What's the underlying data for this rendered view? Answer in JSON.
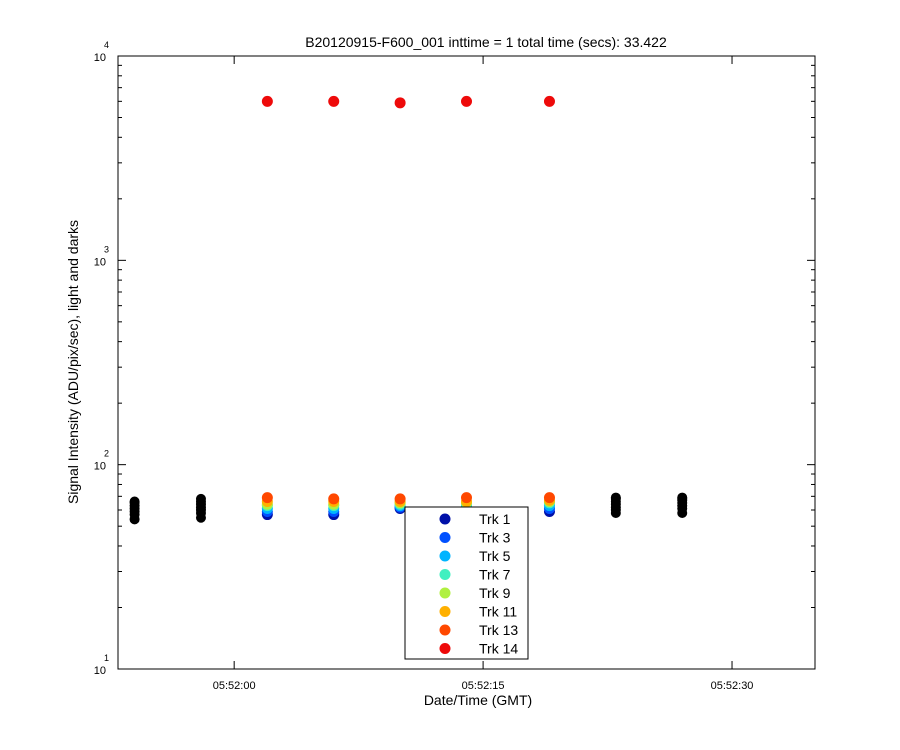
{
  "chart_data": {
    "type": "scatter",
    "title": "B20120915-F600_001 inttime = 1 total time (secs): 33.422",
    "xlabel": "Date/Time (GMT)",
    "ylabel": "Signal Intensity (ADU/pix/sec), light and darks",
    "yscale": "log",
    "ylim": [
      10,
      10000
    ],
    "xlim": [
      "05:51:53",
      "05:52:35"
    ],
    "x_ticks": [
      "05:52:00",
      "05:52:15",
      "05:52:30"
    ],
    "y_ticks": [
      {
        "value": 10,
        "base": "10",
        "exp": "1"
      },
      {
        "value": 100,
        "base": "10",
        "exp": "2"
      },
      {
        "value": 1000,
        "base": "10",
        "exp": "3"
      },
      {
        "value": 10000,
        "base": "10",
        "exp": "4"
      }
    ],
    "legend_position": "bottom-center",
    "series": [
      {
        "name": "Trk 1",
        "color": "#0010a8",
        "x": [
          "05:52:02",
          "05:52:06",
          "05:52:10",
          "05:52:14",
          "05:52:19"
        ],
        "values": [
          57,
          57,
          61,
          61,
          59
        ]
      },
      {
        "name": "Trk 3",
        "color": "#0050ff",
        "x": [
          "05:52:02",
          "05:52:06",
          "05:52:10",
          "05:52:14",
          "05:52:19"
        ],
        "values": [
          59,
          59,
          62,
          62,
          61
        ]
      },
      {
        "name": "Trk 5",
        "color": "#00b4ff",
        "x": [
          "05:52:02",
          "05:52:06",
          "05:52:10",
          "05:52:14",
          "05:52:19"
        ],
        "values": [
          61,
          61,
          63,
          63,
          63
        ]
      },
      {
        "name": "Trk 7",
        "color": "#40f0c0",
        "x": [
          "05:52:02",
          "05:52:06",
          "05:52:10",
          "05:52:14",
          "05:52:19"
        ],
        "values": [
          63,
          63,
          64,
          64,
          65
        ]
      },
      {
        "name": "Trk 9",
        "color": "#b0f040",
        "x": [
          "05:52:02",
          "05:52:06",
          "05:52:10",
          "05:52:14",
          "05:52:19"
        ],
        "values": [
          64,
          64,
          65,
          65,
          66
        ]
      },
      {
        "name": "Trk 11",
        "color": "#ffb000",
        "x": [
          "05:52:02",
          "05:52:06",
          "05:52:10",
          "05:52:14",
          "05:52:19"
        ],
        "values": [
          66,
          66,
          66,
          66,
          67
        ]
      },
      {
        "name": "Trk 13",
        "color": "#ff4800",
        "x": [
          "05:52:02",
          "05:52:06",
          "05:52:10",
          "05:52:14",
          "05:52:19"
        ],
        "values": [
          69,
          68,
          68,
          69,
          69
        ]
      },
      {
        "name": "Trk 14",
        "color": "#ee0a0a",
        "x": [
          "05:52:02",
          "05:52:06",
          "05:52:10",
          "05:52:14",
          "05:52:19"
        ],
        "values": [
          6000,
          6000,
          5900,
          6000,
          6000
        ]
      }
    ],
    "dark_series": {
      "color": "#000000",
      "x": [
        "05:51:54",
        "05:51:58",
        "05:52:23",
        "05:52:27"
      ],
      "values": [
        [
          54,
          57,
          59,
          61,
          63,
          65,
          66
        ],
        [
          55,
          58,
          60,
          62,
          64,
          66,
          68
        ],
        [
          58,
          60,
          62,
          64,
          66,
          68,
          69
        ],
        [
          58,
          61,
          63,
          65,
          67,
          68,
          69
        ]
      ]
    }
  }
}
